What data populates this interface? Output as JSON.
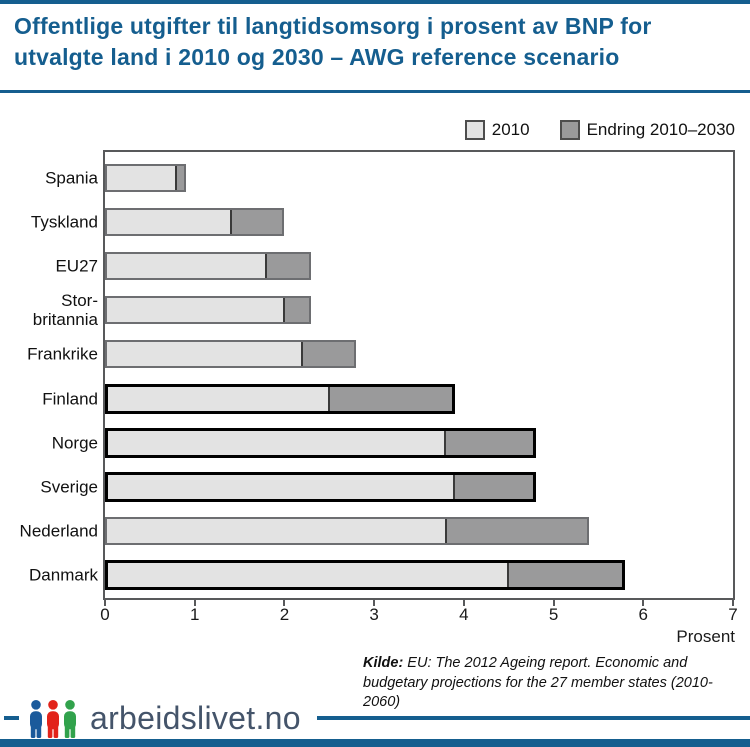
{
  "header": {
    "title": "Offentlige utgifter til langtidsomsorg i prosent av BNP for utvalgte land i 2010 og 2030 – AWG reference scenario"
  },
  "legend": {
    "items": [
      {
        "label": "2010",
        "swatch": "#e3e3e3"
      },
      {
        "label": "Endring 2010–2030",
        "swatch": "#9a9a9b"
      }
    ]
  },
  "chart_data": {
    "type": "bar",
    "orientation": "horizontal",
    "stacked": true,
    "title": "Offentlige utgifter til langtidsomsorg i prosent av BNP for utvalgte land i 2010 og 2030 – AWG reference scenario",
    "categories": [
      "Spania",
      "Tyskland",
      "EU27",
      "Stor-britannia",
      "Frankrike",
      "Finland",
      "Norge",
      "Sverige",
      "Nederland",
      "Danmark"
    ],
    "series": [
      {
        "name": "2010",
        "color": "#e3e3e3",
        "values": [
          0.8,
          1.4,
          1.8,
          2.0,
          2.2,
          2.5,
          3.8,
          3.9,
          3.8,
          4.5
        ]
      },
      {
        "name": "Endring 2010–2030",
        "color": "#9a9a9b",
        "values": [
          0.1,
          0.6,
          0.5,
          0.3,
          0.6,
          1.4,
          1.0,
          0.9,
          1.6,
          1.3
        ]
      }
    ],
    "totals_2030": [
      0.9,
      2.0,
      2.3,
      2.3,
      2.8,
      3.9,
      4.8,
      4.8,
      5.4,
      5.8
    ],
    "highlighted_categories": [
      "Finland",
      "Norge",
      "Sverige",
      "Danmark"
    ],
    "xlim": [
      0,
      7
    ],
    "xticks": [
      0,
      1,
      2,
      3,
      4,
      5,
      6,
      7
    ],
    "xlabel": "Prosent",
    "grid": false,
    "legend_position": "top-right"
  },
  "source": {
    "label": "Kilde:",
    "text": " EU: The 2012 Ageing report. Economic and budgetary projections for the 27 member states (2010-2060)"
  },
  "footer": {
    "logo_text": "arbeidslivet.no",
    "logo_icon_colors": [
      "#1b5a9b",
      "#e2231a",
      "#31a24c"
    ],
    "accent_color": "#155e8f"
  }
}
